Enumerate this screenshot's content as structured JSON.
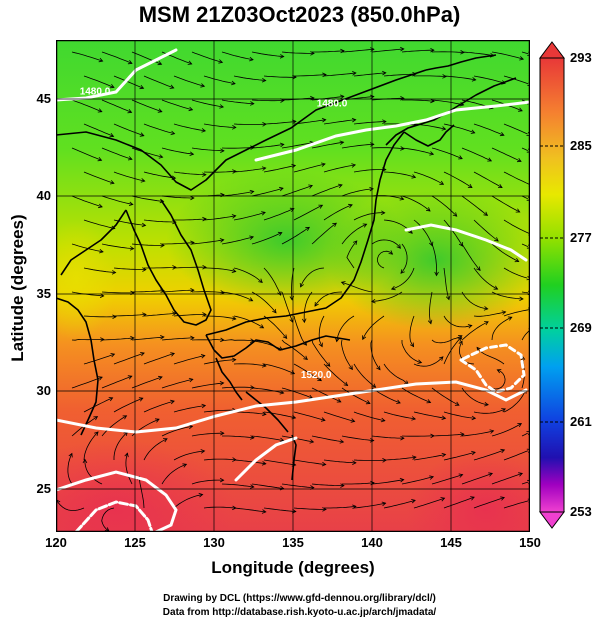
{
  "title": "MSM 21Z03Oct2023 (850.0hPa)",
  "axes": {
    "xlabel": "Longitude (degrees)",
    "ylabel": "Latitude  (degrees)",
    "xticks": [
      "120",
      "125",
      "130",
      "135",
      "140",
      "145",
      "150"
    ],
    "yticks": [
      "25",
      "30",
      "35",
      "40",
      "45"
    ],
    "xrange": [
      120,
      150
    ],
    "yrange": [
      22.4,
      47.6
    ]
  },
  "colorbar": {
    "ticks": [
      "293",
      "285",
      "277",
      "269",
      "261",
      "253"
    ],
    "range": [
      253,
      293
    ]
  },
  "contour_labels": [
    {
      "text": "1520.0",
      "lon": 135.5,
      "lat": 30.3
    },
    {
      "text": "1480.0",
      "lon": 136.5,
      "lat": 44.2
    },
    {
      "text": "1480.0",
      "lon": 121.5,
      "lat": 44.8
    }
  ],
  "credits": {
    "line1": "Drawing by DCL (https://www.gfd-dennou.org/library/dcl/)",
    "line2": "Data from http://database.rish.kyoto-u.ac.jp/arch/jmadata/"
  },
  "colors": {
    "warm": "#e83a3a",
    "mid": "#f0e000",
    "cool": "#30d000",
    "coast": "#000000",
    "contour": "#ffffff"
  }
}
